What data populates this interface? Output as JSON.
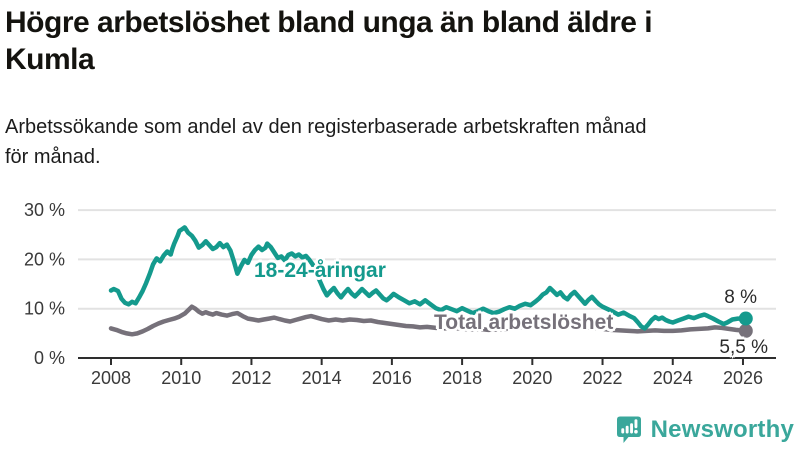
{
  "header": {
    "title": "Högre arbetslöshet bland unga än bland äldre i Kumla",
    "title_lines": [
      "Högre arbetslöshet bland unga än bland äldre i",
      "Kumla"
    ],
    "subtitle": "Arbetssökande som andel av den registerbaserade arbetskraften månad för månad.",
    "subtitle_lines": [
      "Arbetssökande som andel av den registerbaserade arbetskraften månad",
      "för månad."
    ]
  },
  "colors": {
    "young_line": "#149a8d",
    "total_line": "#76717a",
    "axis": "#2e2e2e",
    "grid": "#e2e2e2",
    "tick_text": "#3a3a3a",
    "end_label_text": "#2b2b2b",
    "brand": "#3aa79b"
  },
  "chart_data": {
    "type": "line",
    "title": "Högre arbetslöshet bland unga än bland äldre i Kumla",
    "subtitle": "Arbetssökande som andel av den registerbaserade arbetskraften månad för månad.",
    "xlabel": "",
    "ylabel": "",
    "ylim": [
      0,
      30
    ],
    "xlim": [
      2007.1,
      2026.9
    ],
    "grid": "horizontal",
    "legend": "inline-labels",
    "x_axis": {
      "ticks": [
        2008,
        2010,
        2012,
        2014,
        2016,
        2018,
        2020,
        2022,
        2024,
        2026
      ]
    },
    "y_axis": {
      "ticks": [
        {
          "value": 0,
          "label": "0 %"
        },
        {
          "value": 10,
          "label": "10 %"
        },
        {
          "value": 20,
          "label": "20 %"
        },
        {
          "value": 30,
          "label": "30 %"
        }
      ]
    },
    "series": [
      {
        "name": "18-24-åringar",
        "color": "#149a8d",
        "end_label": "8 %",
        "end_value": 8.0,
        "points": [
          [
            2008.0,
            13.7
          ],
          [
            2008.08,
            14.0
          ],
          [
            2008.2,
            13.6
          ],
          [
            2008.3,
            12.0
          ],
          [
            2008.4,
            11.2
          ],
          [
            2008.5,
            10.9
          ],
          [
            2008.6,
            11.4
          ],
          [
            2008.7,
            11.1
          ],
          [
            2008.8,
            12.3
          ],
          [
            2008.9,
            13.6
          ],
          [
            2009.0,
            15.2
          ],
          [
            2009.1,
            17.0
          ],
          [
            2009.2,
            19.0
          ],
          [
            2009.3,
            20.2
          ],
          [
            2009.4,
            19.6
          ],
          [
            2009.5,
            20.8
          ],
          [
            2009.6,
            21.6
          ],
          [
            2009.7,
            21.0
          ],
          [
            2009.75,
            22.2
          ],
          [
            2009.8,
            23.2
          ],
          [
            2009.9,
            24.8
          ],
          [
            2009.95,
            25.8
          ],
          [
            2010.0,
            26.0
          ],
          [
            2010.1,
            26.5
          ],
          [
            2010.2,
            25.4
          ],
          [
            2010.3,
            24.8
          ],
          [
            2010.4,
            23.8
          ],
          [
            2010.5,
            22.4
          ],
          [
            2010.6,
            22.9
          ],
          [
            2010.7,
            23.7
          ],
          [
            2010.8,
            22.9
          ],
          [
            2010.9,
            22.1
          ],
          [
            2011.0,
            22.5
          ],
          [
            2011.1,
            23.3
          ],
          [
            2011.2,
            22.5
          ],
          [
            2011.3,
            23.0
          ],
          [
            2011.4,
            21.8
          ],
          [
            2011.5,
            19.6
          ],
          [
            2011.6,
            17.1
          ],
          [
            2011.7,
            18.6
          ],
          [
            2011.8,
            19.9
          ],
          [
            2011.9,
            19.3
          ],
          [
            2012.0,
            20.9
          ],
          [
            2012.1,
            21.9
          ],
          [
            2012.2,
            22.6
          ],
          [
            2012.3,
            21.9
          ],
          [
            2012.4,
            22.4
          ],
          [
            2012.45,
            23.2
          ],
          [
            2012.55,
            22.5
          ],
          [
            2012.65,
            21.4
          ],
          [
            2012.75,
            20.3
          ],
          [
            2012.85,
            20.6
          ],
          [
            2012.95,
            19.8
          ],
          [
            2013.05,
            20.9
          ],
          [
            2013.15,
            21.2
          ],
          [
            2013.25,
            20.6
          ],
          [
            2013.35,
            21.0
          ],
          [
            2013.45,
            20.4
          ],
          [
            2013.55,
            20.7
          ],
          [
            2013.65,
            19.9
          ],
          [
            2013.75,
            18.9
          ],
          [
            2013.85,
            17.3
          ],
          [
            2013.95,
            15.6
          ],
          [
            2014.05,
            14.0
          ],
          [
            2014.15,
            12.7
          ],
          [
            2014.25,
            13.5
          ],
          [
            2014.35,
            14.2
          ],
          [
            2014.45,
            13.1
          ],
          [
            2014.55,
            12.3
          ],
          [
            2014.65,
            13.2
          ],
          [
            2014.75,
            14.0
          ],
          [
            2014.85,
            13.1
          ],
          [
            2014.95,
            12.5
          ],
          [
            2015.05,
            13.2
          ],
          [
            2015.15,
            14.0
          ],
          [
            2015.25,
            13.3
          ],
          [
            2015.35,
            12.6
          ],
          [
            2015.45,
            13.2
          ],
          [
            2015.55,
            13.7
          ],
          [
            2015.65,
            12.9
          ],
          [
            2015.75,
            12.1
          ],
          [
            2015.85,
            11.7
          ],
          [
            2015.95,
            12.3
          ],
          [
            2016.05,
            13.0
          ],
          [
            2016.2,
            12.3
          ],
          [
            2016.35,
            11.7
          ],
          [
            2016.5,
            11.1
          ],
          [
            2016.65,
            11.5
          ],
          [
            2016.8,
            10.9
          ],
          [
            2016.95,
            11.7
          ],
          [
            2017.1,
            10.9
          ],
          [
            2017.25,
            10.1
          ],
          [
            2017.4,
            9.7
          ],
          [
            2017.55,
            10.3
          ],
          [
            2017.7,
            9.9
          ],
          [
            2017.85,
            9.5
          ],
          [
            2018.0,
            10.1
          ],
          [
            2018.15,
            9.6
          ],
          [
            2018.3,
            9.1
          ],
          [
            2018.45,
            9.5
          ],
          [
            2018.6,
            10.0
          ],
          [
            2018.75,
            9.5
          ],
          [
            2018.9,
            9.1
          ],
          [
            2019.05,
            9.4
          ],
          [
            2019.2,
            9.9
          ],
          [
            2019.35,
            10.3
          ],
          [
            2019.5,
            10.0
          ],
          [
            2019.65,
            10.6
          ],
          [
            2019.8,
            11.0
          ],
          [
            2019.95,
            10.7
          ],
          [
            2020.1,
            11.5
          ],
          [
            2020.2,
            12.1
          ],
          [
            2020.3,
            12.9
          ],
          [
            2020.4,
            13.3
          ],
          [
            2020.5,
            14.2
          ],
          [
            2020.6,
            13.5
          ],
          [
            2020.7,
            12.8
          ],
          [
            2020.8,
            13.3
          ],
          [
            2020.9,
            12.4
          ],
          [
            2021.0,
            11.9
          ],
          [
            2021.1,
            12.8
          ],
          [
            2021.2,
            13.4
          ],
          [
            2021.3,
            12.6
          ],
          [
            2021.4,
            11.8
          ],
          [
            2021.5,
            11.0
          ],
          [
            2021.6,
            11.8
          ],
          [
            2021.7,
            12.4
          ],
          [
            2021.8,
            11.6
          ],
          [
            2021.9,
            10.9
          ],
          [
            2022.0,
            10.4
          ],
          [
            2022.15,
            9.9
          ],
          [
            2022.3,
            9.4
          ],
          [
            2022.45,
            8.8
          ],
          [
            2022.6,
            9.2
          ],
          [
            2022.75,
            8.6
          ],
          [
            2022.9,
            8.1
          ],
          [
            2023.0,
            7.3
          ],
          [
            2023.1,
            6.4
          ],
          [
            2023.2,
            6.0
          ],
          [
            2023.3,
            6.8
          ],
          [
            2023.4,
            7.7
          ],
          [
            2023.5,
            8.3
          ],
          [
            2023.6,
            7.9
          ],
          [
            2023.7,
            8.2
          ],
          [
            2023.8,
            7.7
          ],
          [
            2023.9,
            7.4
          ],
          [
            2024.0,
            7.2
          ],
          [
            2024.15,
            7.6
          ],
          [
            2024.3,
            8.0
          ],
          [
            2024.45,
            8.4
          ],
          [
            2024.6,
            8.1
          ],
          [
            2024.75,
            8.5
          ],
          [
            2024.9,
            8.8
          ],
          [
            2025.0,
            8.5
          ],
          [
            2025.15,
            8.0
          ],
          [
            2025.3,
            7.4
          ],
          [
            2025.45,
            6.9
          ],
          [
            2025.55,
            7.2
          ],
          [
            2025.7,
            7.8
          ],
          [
            2025.85,
            8.0
          ],
          [
            2026.08,
            8.0
          ]
        ]
      },
      {
        "name": "Total arbetslöshet",
        "color": "#76717a",
        "end_label": "5,5 %",
        "end_value": 5.5,
        "points": [
          [
            2008.0,
            6.0
          ],
          [
            2008.15,
            5.7
          ],
          [
            2008.3,
            5.3
          ],
          [
            2008.45,
            5.0
          ],
          [
            2008.6,
            4.8
          ],
          [
            2008.75,
            5.0
          ],
          [
            2008.9,
            5.4
          ],
          [
            2009.05,
            5.9
          ],
          [
            2009.2,
            6.5
          ],
          [
            2009.35,
            7.0
          ],
          [
            2009.5,
            7.4
          ],
          [
            2009.65,
            7.7
          ],
          [
            2009.8,
            8.0
          ],
          [
            2009.95,
            8.4
          ],
          [
            2010.1,
            9.0
          ],
          [
            2010.2,
            9.7
          ],
          [
            2010.3,
            10.4
          ],
          [
            2010.4,
            10.0
          ],
          [
            2010.5,
            9.4
          ],
          [
            2010.6,
            9.0
          ],
          [
            2010.7,
            9.3
          ],
          [
            2010.8,
            9.0
          ],
          [
            2010.9,
            8.8
          ],
          [
            2011.0,
            9.1
          ],
          [
            2011.15,
            8.8
          ],
          [
            2011.3,
            8.6
          ],
          [
            2011.45,
            8.9
          ],
          [
            2011.6,
            9.1
          ],
          [
            2011.75,
            8.5
          ],
          [
            2011.9,
            8.0
          ],
          [
            2012.05,
            7.8
          ],
          [
            2012.2,
            7.6
          ],
          [
            2012.35,
            7.8
          ],
          [
            2012.5,
            8.0
          ],
          [
            2012.65,
            8.2
          ],
          [
            2012.8,
            7.9
          ],
          [
            2012.95,
            7.6
          ],
          [
            2013.1,
            7.4
          ],
          [
            2013.25,
            7.7
          ],
          [
            2013.4,
            8.0
          ],
          [
            2013.55,
            8.3
          ],
          [
            2013.7,
            8.5
          ],
          [
            2013.85,
            8.2
          ],
          [
            2014.0,
            7.9
          ],
          [
            2014.2,
            7.6
          ],
          [
            2014.4,
            7.8
          ],
          [
            2014.6,
            7.6
          ],
          [
            2014.8,
            7.8
          ],
          [
            2015.0,
            7.7
          ],
          [
            2015.2,
            7.5
          ],
          [
            2015.4,
            7.6
          ],
          [
            2015.6,
            7.3
          ],
          [
            2015.8,
            7.1
          ],
          [
            2016.0,
            6.9
          ],
          [
            2016.2,
            6.7
          ],
          [
            2016.4,
            6.5
          ],
          [
            2016.6,
            6.4
          ],
          [
            2016.8,
            6.2
          ],
          [
            2017.0,
            6.3
          ],
          [
            2017.25,
            6.1
          ],
          [
            2017.5,
            6.0
          ],
          [
            2017.75,
            6.1
          ],
          [
            2018.0,
            5.9
          ],
          [
            2018.25,
            5.8
          ],
          [
            2018.5,
            5.9
          ],
          [
            2018.75,
            5.7
          ],
          [
            2019.0,
            5.8
          ],
          [
            2019.25,
            5.9
          ],
          [
            2019.5,
            6.1
          ],
          [
            2019.75,
            6.2
          ],
          [
            2020.0,
            6.4
          ],
          [
            2020.2,
            6.8
          ],
          [
            2020.4,
            7.1
          ],
          [
            2020.6,
            7.0
          ],
          [
            2020.8,
            6.8
          ],
          [
            2021.0,
            6.7
          ],
          [
            2021.25,
            6.5
          ],
          [
            2021.5,
            6.3
          ],
          [
            2021.75,
            6.1
          ],
          [
            2022.0,
            5.9
          ],
          [
            2022.25,
            5.7
          ],
          [
            2022.5,
            5.6
          ],
          [
            2022.75,
            5.5
          ],
          [
            2023.0,
            5.4
          ],
          [
            2023.25,
            5.5
          ],
          [
            2023.5,
            5.6
          ],
          [
            2023.75,
            5.5
          ],
          [
            2024.0,
            5.5
          ],
          [
            2024.25,
            5.6
          ],
          [
            2024.5,
            5.8
          ],
          [
            2024.75,
            5.9
          ],
          [
            2025.0,
            6.0
          ],
          [
            2025.2,
            6.2
          ],
          [
            2025.4,
            6.1
          ],
          [
            2025.6,
            5.9
          ],
          [
            2025.8,
            5.7
          ],
          [
            2026.08,
            5.5
          ]
        ]
      }
    ]
  },
  "branding": {
    "name": "Newsworthy",
    "color": "#3aa79b"
  }
}
